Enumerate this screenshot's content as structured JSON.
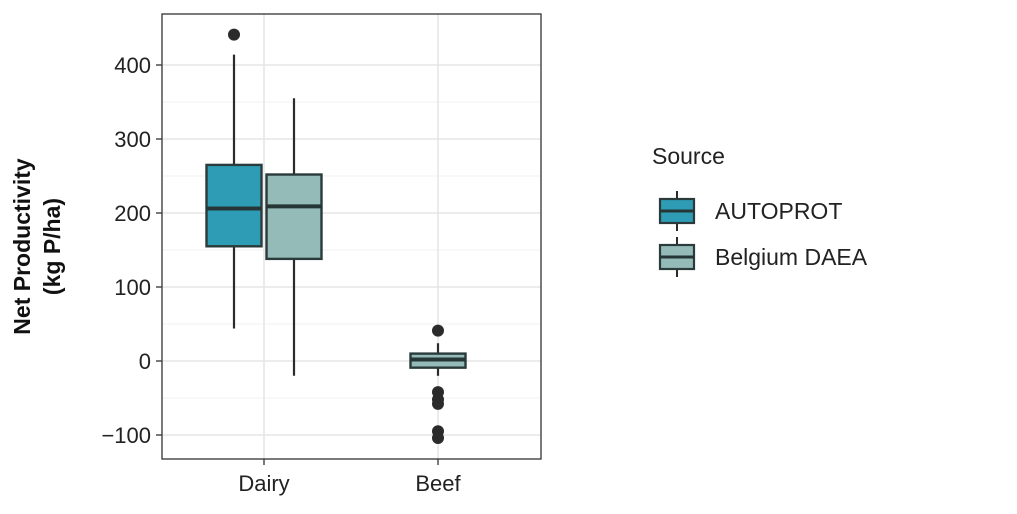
{
  "chart_data": {
    "type": "boxplot",
    "title": "",
    "xlabel": "",
    "ylabel_lines": [
      "Net Productivity",
      "(kg P/ha)"
    ],
    "ylim": [
      -135,
      470
    ],
    "yticks": [
      -100,
      0,
      100,
      200,
      300,
      400
    ],
    "ytick_labels": [
      "−100",
      "0",
      "100",
      "200",
      "300",
      "400"
    ],
    "categories": [
      "Dairy",
      "Beef"
    ],
    "grid": true,
    "legend": {
      "title": "Source",
      "placement": "right"
    },
    "series": [
      {
        "name": "AUTOPROT",
        "color": "#2e9cb5",
        "boxes": [
          {
            "category": "Dairy",
            "min": 44,
            "q1": 155,
            "median": 206,
            "q3": 265,
            "max": 414,
            "outliers": [
              441
            ]
          }
        ]
      },
      {
        "name": "Belgium DAEA",
        "color": "#94bbb8",
        "boxes": [
          {
            "category": "Dairy",
            "min": -20,
            "q1": 138,
            "median": 209,
            "q3": 252,
            "max": 355,
            "outliers": []
          },
          {
            "category": "Beef",
            "min": -20,
            "q1": -9,
            "median": 2,
            "q3": 10,
            "max": 24,
            "outliers": [
              41,
              -42,
              -52,
              -58,
              -95,
              -104
            ]
          }
        ]
      }
    ]
  }
}
